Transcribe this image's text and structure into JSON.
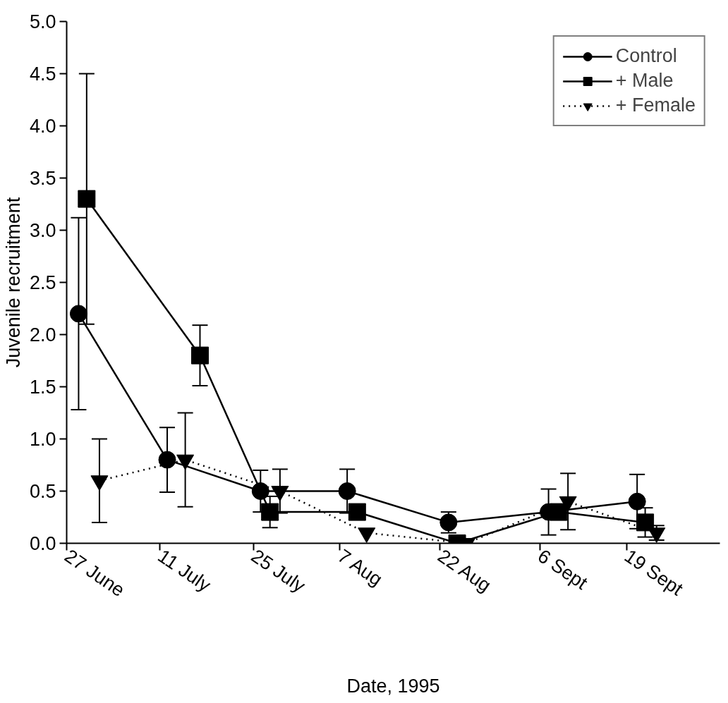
{
  "chart_data": {
    "type": "line",
    "xlabel": "Date, 1995",
    "ylabel": "Juvenile recruitment",
    "xlim": [
      "1995-06-27",
      "1995-10-03"
    ],
    "xticks": [
      {
        "value": "1995-06-27",
        "label": "27 June"
      },
      {
        "value": "1995-07-11",
        "label": "11 July"
      },
      {
        "value": "1995-07-25",
        "label": "25 July"
      },
      {
        "value": "1995-08-07",
        "label": "7 Aug"
      },
      {
        "value": "1995-08-22",
        "label": "22 Aug"
      },
      {
        "value": "1995-09-06",
        "label": "6 Sept"
      },
      {
        "value": "1995-09-19",
        "label": "19 Sept"
      }
    ],
    "ylim": [
      0,
      5
    ],
    "yticks": [
      {
        "value": 0,
        "label": "0.0"
      },
      {
        "value": 0.5,
        "label": "0.5"
      },
      {
        "value": 1,
        "label": "1.0"
      },
      {
        "value": 1.5,
        "label": "1.5"
      },
      {
        "value": 2,
        "label": "2.0"
      },
      {
        "value": 2.5,
        "label": "2.5"
      },
      {
        "value": 3,
        "label": "3.0"
      },
      {
        "value": 3.5,
        "label": "3.5"
      },
      {
        "value": 4,
        "label": "4.0"
      },
      {
        "value": 4.5,
        "label": "4.5"
      },
      {
        "value": 5,
        "label": "5.0"
      }
    ],
    "legend": "top right",
    "series": [
      {
        "name": "Control",
        "color": "#000000",
        "marker": "circle",
        "line_style": "solid",
        "x": [
          "1995-06-28T19:00",
          "1995-07-12T02:00",
          "1995-07-26T02:00",
          "1995-08-08T02:00",
          "1995-08-23T07:00",
          "1995-09-07T07:00",
          "1995-09-20T14:00"
        ],
        "values": [
          2.2,
          0.8,
          0.5,
          0.5,
          0.2,
          0.3,
          0.4
        ],
        "errors": [
          0.92,
          0.31,
          0.2,
          0.21,
          0.1,
          0.22,
          0.26
        ]
      },
      {
        "name": "+ Male",
        "color": "#000000",
        "marker": "square",
        "line_style": "solid",
        "x": [
          "1995-06-30T00:00",
          "1995-07-17T00:00",
          "1995-07-27T12:00",
          "1995-08-09T14:00",
          "1995-08-24T14:00",
          "1995-09-08T19:00",
          "1995-09-21T19:00"
        ],
        "values": [
          3.3,
          1.8,
          0.3,
          0.3,
          0.0,
          0.3,
          0.2
        ],
        "errors": [
          1.2,
          0.29,
          0.15,
          null,
          null,
          null,
          0.14
        ]
      },
      {
        "name": "+ Female",
        "color": "#000000",
        "marker": "triangle",
        "line_style": "dotted",
        "x": [
          "1995-07-01T22:00",
          "1995-07-14T19:00",
          "1995-07-29T00:00",
          "1995-08-11T00:00",
          "1995-08-26T00:00",
          "1995-09-10T05:00",
          "1995-09-23T12:00"
        ],
        "values": [
          0.6,
          0.8,
          0.5,
          0.1,
          0.0,
          0.4,
          0.1
        ],
        "errors": [
          0.4,
          0.45,
          0.21,
          null,
          null,
          0.27,
          0.07
        ]
      }
    ]
  }
}
